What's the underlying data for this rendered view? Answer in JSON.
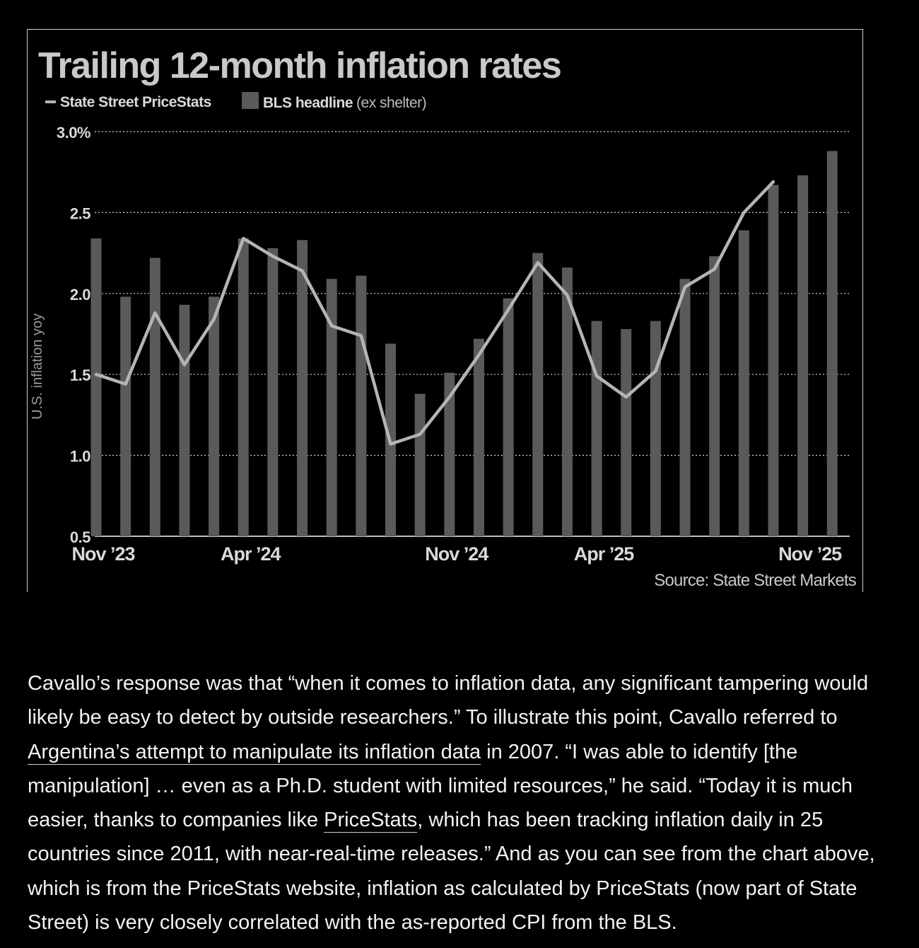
{
  "chart_data": {
    "type": "bar",
    "title": "Trailing 12-month inflation rates",
    "ylabel": "U.S. inflation yoy",
    "ylim": [
      0.5,
      3.0
    ],
    "yticks": [
      "0.5",
      "1.0",
      "1.5",
      "2.0",
      "2.5",
      "3.0%"
    ],
    "ytick_values": [
      0.5,
      1.0,
      1.5,
      2.0,
      2.5,
      3.0
    ],
    "grid": "horizontal dotted",
    "legend_position": "top-left",
    "legend": [
      {
        "name": "State Street PriceStats",
        "kind": "line"
      },
      {
        "name": "BLS headline",
        "suffix": "(ex shelter)",
        "kind": "bar"
      }
    ],
    "x": [
      "Nov 2023",
      "Dec 2023",
      "Jan 2024",
      "Feb 2024",
      "Mar 2024",
      "Apr 2024",
      "May 2024",
      "Jun 2024",
      "Jul 2024",
      "Aug 2024",
      "Sep 2024",
      "Oct 2024",
      "Nov 2024",
      "Dec 2024",
      "Jan 2025",
      "Feb 2025",
      "Mar 2025",
      "Apr 2025",
      "May 2025",
      "Jun 2025",
      "Jul 2025",
      "Aug 2025",
      "Sep 2025",
      "Oct 2025",
      "Nov 2025",
      "Dec 2025",
      "Jan 2026"
    ],
    "xtick_labels": [
      {
        "label": "Nov ’23",
        "index": 0
      },
      {
        "label": "Apr ’24",
        "index": 5
      },
      {
        "label": "Nov ’24",
        "index": 12
      },
      {
        "label": "Apr ’25",
        "index": 17
      },
      {
        "label": "Nov ’25",
        "index": 24
      }
    ],
    "series": [
      {
        "name": "BLS headline",
        "type": "bar",
        "values": [
          2.34,
          1.98,
          2.22,
          1.93,
          1.98,
          2.34,
          2.28,
          2.33,
          2.09,
          2.11,
          1.69,
          1.38,
          1.51,
          1.72,
          1.97,
          2.25,
          2.16,
          1.83,
          1.78,
          1.83,
          2.09,
          2.23,
          2.39,
          2.67,
          2.73,
          2.88,
          null
        ]
      },
      {
        "name": "State Street PriceStats",
        "type": "line",
        "values": [
          1.5,
          1.44,
          1.88,
          1.56,
          1.84,
          2.34,
          2.23,
          2.14,
          1.8,
          1.74,
          1.07,
          1.13,
          1.36,
          1.62,
          1.9,
          2.19,
          1.99,
          1.49,
          1.36,
          1.52,
          2.04,
          2.15,
          2.5,
          2.69,
          null,
          null,
          null
        ]
      }
    ],
    "source": "Source: State Street Markets",
    "colors": {
      "bars": "#5a5a5a",
      "line": "#b4b4b4",
      "grid": "#d8d8d8",
      "text": "#d9d9d9",
      "title": "#c9c9c9"
    }
  },
  "article": {
    "before_link1": "Cavallo’s response was that “when it comes to inflation data, any significant tampering would likely be easy to detect by outside researchers.” To illustrate this point, Cavallo referred to ",
    "link1": "Argentina’s attempt to manipulate its inflation data",
    "after_link1": " in 2007. “I was able to identify [the manipulation] … even as a Ph.D. student with limited resources,” he said. “Today it is much easier, thanks to companies like ",
    "link2": "PriceStats",
    "after_link2": ", which has been tracking inflation daily in 25 countries since 2011, with near-real-time releases.” And as you can see from the chart above, which is from the PriceStats website, inflation as calculated by PriceStats (now part of State Street) is very closely correlated with the as-reported CPI from the BLS."
  }
}
